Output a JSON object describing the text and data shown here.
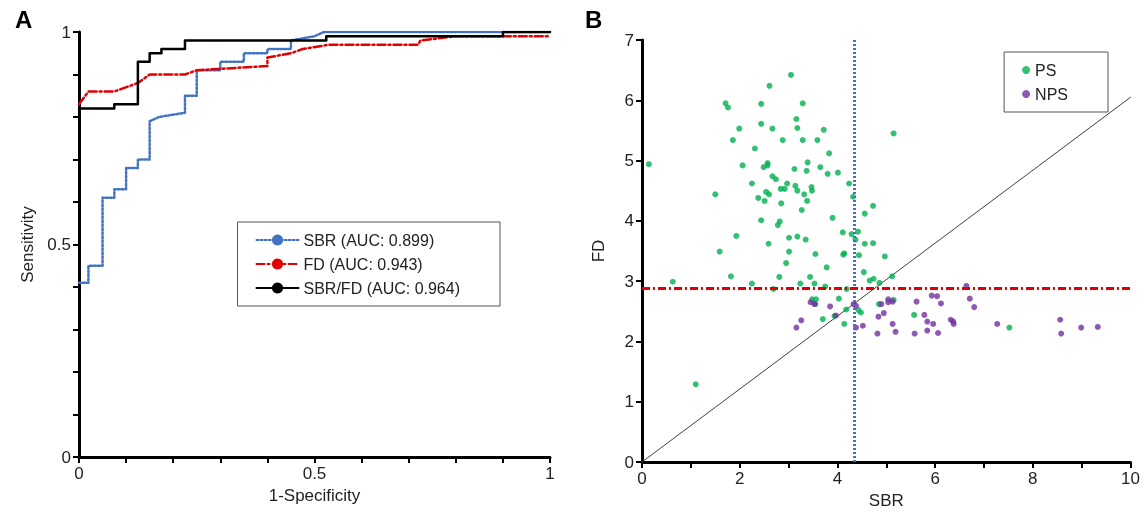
{
  "chart_data": [
    {
      "type": "line",
      "title": "A",
      "xlabel": "1-Specificity",
      "ylabel": "Sensitivity",
      "xlim": [
        0,
        1
      ],
      "ylim": [
        0,
        1
      ],
      "xticks": [
        0,
        {
          "value": 0.1,
          "label": null
        },
        {
          "value": 0.2,
          "label": null
        },
        {
          "value": 0.3,
          "label": null
        },
        {
          "value": 0.4,
          "label": null
        },
        0.5,
        {
          "value": 0.6,
          "label": null
        },
        {
          "value": 0.7,
          "label": null
        },
        {
          "value": 0.8,
          "label": null
        },
        {
          "value": 0.9,
          "label": null
        },
        1
      ],
      "yticks": [
        0,
        {
          "value": 0.1,
          "label": null
        },
        {
          "value": 0.2,
          "label": null
        },
        {
          "value": 0.3,
          "label": null
        },
        {
          "value": 0.4,
          "label": null
        },
        0.5,
        {
          "value": 0.6,
          "label": null
        },
        {
          "value": 0.7,
          "label": null
        },
        {
          "value": 0.8,
          "label": null
        },
        {
          "value": 0.9,
          "label": null
        },
        1
      ],
      "grid": false,
      "legend": "right",
      "marker": "none",
      "series": [
        {
          "name": "SBR (AUC: 0.899)",
          "color": "#4472c4",
          "line_style": "dotted",
          "x": [
            0,
            0.02,
            0.02,
            0.05,
            0.05,
            0.075,
            0.075,
            0.1,
            0.1,
            0.125,
            0.125,
            0.15,
            0.15,
            0.17,
            0.225,
            0.225,
            0.25,
            0.25,
            0.3,
            0.3,
            0.35,
            0.35,
            0.4,
            0.4,
            0.45,
            0.45,
            0.5,
            0.52,
            1
          ],
          "values": [
            0.41,
            0.41,
            0.45,
            0.45,
            0.61,
            0.61,
            0.63,
            0.63,
            0.68,
            0.68,
            0.7,
            0.7,
            0.79,
            0.8,
            0.81,
            0.85,
            0.85,
            0.91,
            0.91,
            0.93,
            0.93,
            0.95,
            0.95,
            0.96,
            0.96,
            0.98,
            0.99,
            1,
            1
          ]
        },
        {
          "name": "FD (AUC: 0.943)",
          "color": "#e00000",
          "line_style": "dashed",
          "x": [
            0,
            0.02,
            0.075,
            0.125,
            0.15,
            0.225,
            0.25,
            0.4,
            0.4,
            0.45,
            0.475,
            0.53,
            0.72,
            0.725,
            0.8,
            1
          ],
          "values": [
            0.83,
            0.86,
            0.86,
            0.88,
            0.9,
            0.9,
            0.91,
            0.92,
            0.94,
            0.95,
            0.96,
            0.97,
            0.97,
            0.98,
            0.99,
            0.99
          ]
        },
        {
          "name": "SBR/FD (AUC: 0.964)",
          "color": "#000000",
          "line_style": "solid",
          "x": [
            0,
            0.075,
            0.075,
            0.125,
            0.125,
            0.15,
            0.15,
            0.175,
            0.175,
            0.225,
            0.225,
            0.525,
            0.525,
            0.9,
            0.9,
            1
          ],
          "values": [
            0.82,
            0.82,
            0.83,
            0.83,
            0.93,
            0.93,
            0.95,
            0.95,
            0.96,
            0.96,
            0.98,
            0.98,
            0.99,
            0.99,
            1,
            1
          ]
        }
      ]
    },
    {
      "type": "scatter",
      "title": "B",
      "xlabel": "SBR",
      "ylabel": "FD",
      "xlim": [
        0,
        10
      ],
      "ylim": [
        0,
        7
      ],
      "xticks": [
        0,
        {
          "value": 1,
          "label": null
        },
        2,
        {
          "value": 3,
          "label": null
        },
        4,
        {
          "value": 5,
          "label": null
        },
        6,
        {
          "value": 7,
          "label": null
        },
        8,
        {
          "value": 9,
          "label": null
        },
        10
      ],
      "yticks": [
        0,
        1,
        2,
        3,
        4,
        5,
        6,
        7
      ],
      "grid": false,
      "legend": "top right",
      "marker": "circle",
      "ref_lines": [
        {
          "axis": "x",
          "value": 4.35,
          "color": "#4472c4",
          "line_style": "dotted"
        },
        {
          "axis": "y",
          "value": 2.88,
          "color": "#e00000",
          "line_style": "dashed"
        }
      ],
      "series": [
        {
          "name": "PS",
          "color": "#00b050",
          "x": [
            3.05,
            2.61,
            1.71,
            1.76,
            2.44,
            3.29,
            3.16,
            3.18,
            2.44,
            2.67,
            1.99,
            1.86,
            2.88,
            3.29,
            3.59,
            3.72,
            5.15,
            2.31,
            3.83,
            0.14,
            2.06,
            2.49,
            2.57,
            2.57,
            3.12,
            3.37,
            3.39,
            3.65,
            3.8,
            4.01,
            2.67,
            2.74,
            2.25,
            2.97,
            3.14,
            2.84,
            2.92,
            3.18,
            3.47,
            3.48,
            3.32,
            4.24,
            2.54,
            2.6,
            1.5,
            2.38,
            2.51,
            3.38,
            2.85,
            4.32,
            4.73,
            3.27,
            4.56,
            3.9,
            2.44,
            2.82,
            2.78,
            4.11,
            4.29,
            4.42,
            4.37,
            1.93,
            3.01,
            3.18,
            3.35,
            4.73,
            4.56,
            2.59,
            1.59,
            3.01,
            3.55,
            4.14,
            4.12,
            4.44,
            4.97,
            2.95,
            3.78,
            1.82,
            2.81,
            3.44,
            4.54,
            4.74,
            4.66,
            5.12,
            0.63,
            2.25,
            3.24,
            3.53,
            3.75,
            4.86,
            2.69,
            4.19,
            1.1,
            3.48,
            3.56,
            3.55,
            4.03,
            3.7,
            3.94,
            4.18,
            4.14,
            4.43,
            4.48,
            4.85,
            5.15,
            5.57,
            7.52
          ],
          "values": [
            6.42,
            6.24,
            5.95,
            5.88,
            5.94,
            5.95,
            5.69,
            5.54,
            5.61,
            5.53,
            5.53,
            5.34,
            5.34,
            5.34,
            5.34,
            5.51,
            5.45,
            5.2,
            5.12,
            4.94,
            4.92,
            4.89,
            4.96,
            4.92,
            4.86,
            4.83,
            4.97,
            4.89,
            4.78,
            4.8,
            4.74,
            4.69,
            4.62,
            4.62,
            4.58,
            4.53,
            4.53,
            4.5,
            4.56,
            4.5,
            4.44,
            4.62,
            4.48,
            4.44,
            4.44,
            4.38,
            4.33,
            4.33,
            4.29,
            4.4,
            4.25,
            4.18,
            4.12,
            4.05,
            4.01,
            3.99,
            3.93,
            3.81,
            3.78,
            3.82,
            3.69,
            3.75,
            3.72,
            3.74,
            3.69,
            3.63,
            3.62,
            3.62,
            3.49,
            3.49,
            3.45,
            3.46,
            3.44,
            3.43,
            3.41,
            3.3,
            3.23,
            3.08,
            3.07,
            3.07,
            3.15,
            3.04,
            3.01,
            3.08,
            2.99,
            2.96,
            2.96,
            2.96,
            2.91,
            2.97,
            2.87,
            2.87,
            1.29,
            2.7,
            2.7,
            2.62,
            2.71,
            2.37,
            2.42,
            2.53,
            2.29,
            2.52,
            2.48,
            2.62,
            2.69,
            2.44,
            2.23
          ]
        },
        {
          "name": "NPS",
          "color": "#7030a0",
          "x": [
            3.45,
            3.53,
            3.85,
            3.26,
            3.16,
            3.97,
            4.33,
            4.38,
            4.38,
            4.52,
            4.82,
            4.84,
            4.95,
            4.9,
            5.04,
            5.04,
            5.13,
            5.13,
            5.19,
            5.58,
            5.62,
            5.78,
            5.84,
            5.84,
            5.96,
            5.93,
            6.04,
            6.12,
            6.06,
            6.32,
            6.37,
            6.38,
            6.64,
            6.71,
            6.8,
            7.27,
            8.56,
            8.58,
            8.99,
            9.33
          ],
          "values": [
            2.65,
            2.62,
            2.58,
            2.35,
            2.23,
            2.43,
            2.62,
            2.59,
            2.23,
            2.26,
            2.13,
            2.41,
            2.47,
            2.62,
            2.7,
            2.65,
            2.66,
            2.29,
            2.16,
            2.13,
            2.66,
            2.44,
            2.33,
            2.18,
            2.29,
            2.76,
            2.75,
            2.63,
            2.14,
            2.36,
            2.33,
            2.29,
            2.92,
            2.71,
            2.57,
            2.29,
            2.36,
            2.13,
            2.23,
            2.24
          ]
        },
        {
          "type": "line",
          "color": "#404040",
          "marker": "none",
          "line_style": "solid",
          "x": [
            0,
            10
          ],
          "values": [
            0,
            6.05
          ]
        }
      ]
    }
  ]
}
